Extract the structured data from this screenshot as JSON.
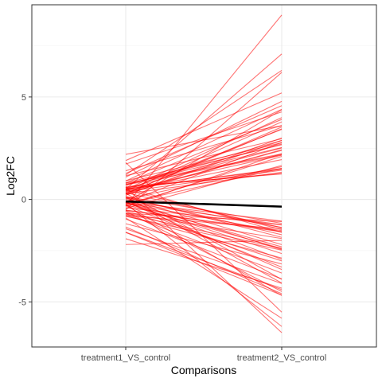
{
  "chart_data": {
    "type": "line",
    "title": "",
    "xlabel": "Comparisons",
    "ylabel": "Log2FC",
    "categories": [
      "treatment1_VS_control",
      "treatment2_VS_control"
    ],
    "ylim": [
      -7.2,
      9.5
    ],
    "yticks": [
      -5,
      0,
      5
    ],
    "grid": true,
    "legend": "none",
    "series_color": "#ff0000",
    "series_opacity": 0.55,
    "mean_line": {
      "values": [
        -0.1,
        -0.35
      ],
      "color": "#000000"
    },
    "series_groups": [
      {
        "name": "",
        "count": 16,
        "start_range": [
          -0.6,
          0.9
        ],
        "end_range": [
          1.0,
          2.4
        ]
      },
      {
        "name": "",
        "count": 14,
        "start_range": [
          -0.4,
          1.2
        ],
        "end_range": [
          2.4,
          3.6
        ]
      },
      {
        "name": "",
        "count": 8,
        "start_range": [
          -0.2,
          2.2
        ],
        "end_range": [
          3.6,
          5.0
        ]
      },
      {
        "name": "",
        "count": 16,
        "start_range": [
          -0.8,
          0.6
        ],
        "end_range": [
          -2.2,
          -1.0
        ]
      },
      {
        "name": "",
        "count": 14,
        "start_range": [
          -1.2,
          0.4
        ],
        "end_range": [
          -3.6,
          -2.2
        ]
      },
      {
        "name": "",
        "count": 8,
        "start_range": [
          -2.2,
          0.2
        ],
        "end_range": [
          -5.2,
          -3.6
        ]
      }
    ],
    "series": [
      {
        "name": "",
        "values": [
          -0.3,
          9.0
        ]
      },
      {
        "name": "",
        "values": [
          0.5,
          7.1
        ]
      },
      {
        "name": "",
        "values": [
          1.2,
          6.3
        ]
      },
      {
        "name": "",
        "values": [
          1.9,
          5.2
        ]
      },
      {
        "name": "",
        "values": [
          2.2,
          3.6
        ]
      },
      {
        "name": "",
        "values": [
          -0.5,
          6.2
        ]
      },
      {
        "name": "",
        "values": [
          0.6,
          -6.5
        ]
      },
      {
        "name": "",
        "values": [
          -0.2,
          -6.2
        ]
      },
      {
        "name": "",
        "values": [
          1.8,
          -5.5
        ]
      },
      {
        "name": "",
        "values": [
          -0.9,
          -5.8
        ]
      },
      {
        "name": "",
        "values": [
          -2.2,
          -2.0
        ]
      },
      {
        "name": "",
        "values": [
          -1.6,
          -4.4
        ]
      },
      {
        "name": "",
        "values": [
          0.3,
          -3.9
        ]
      },
      {
        "name": "",
        "values": [
          0.9,
          4.4
        ]
      }
    ]
  }
}
